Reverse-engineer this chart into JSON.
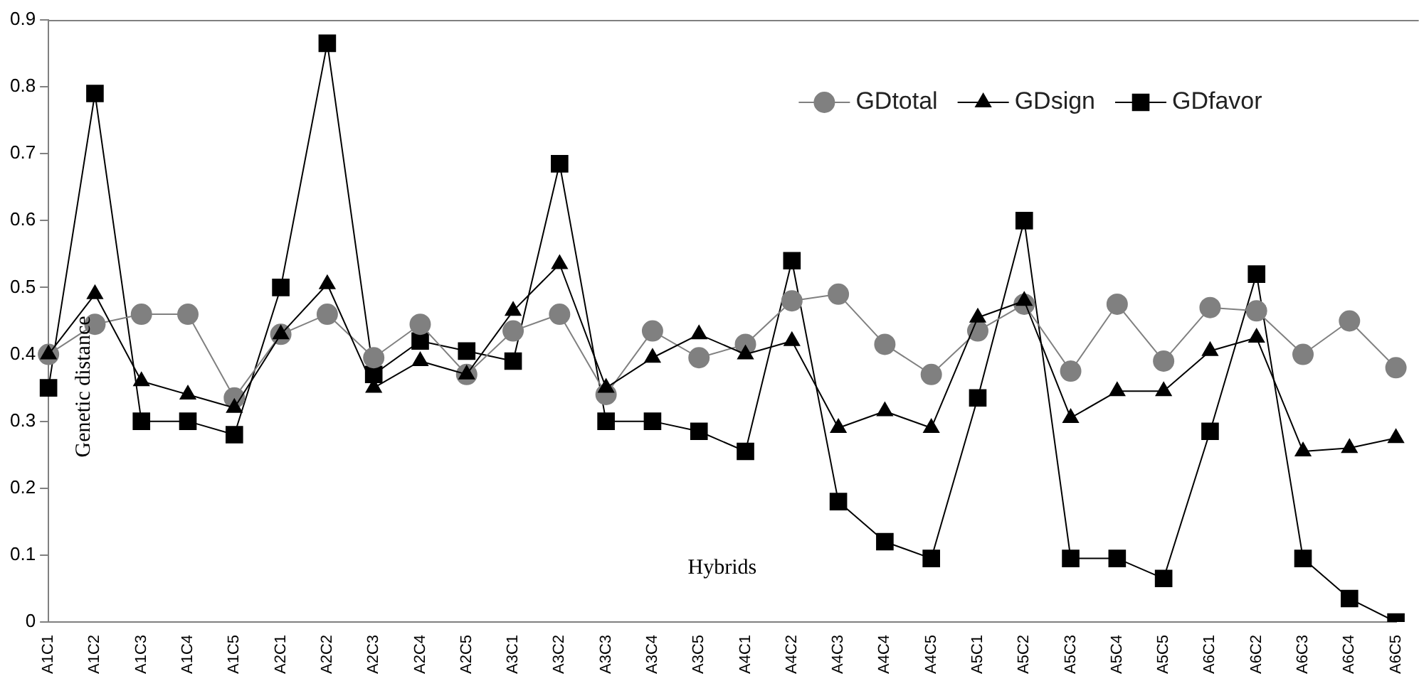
{
  "chart_data": {
    "type": "line",
    "xlabel": "Hybrids",
    "ylabel": "Genetic distance",
    "categories": [
      "A1C1",
      "A1C2",
      "A1C3",
      "A1C4",
      "A1C5",
      "A2C1",
      "A2C2",
      "A2C3",
      "A2C4",
      "A2C5",
      "A3C1",
      "A3C2",
      "A3C3",
      "A3C4",
      "A3C5",
      "A4C1",
      "A4C2",
      "A4C3",
      "A4C4",
      "A4C5",
      "A5C1",
      "A5C2",
      "A5C3",
      "A5C4",
      "A5C5",
      "A6C1",
      "A6C2",
      "A6C3",
      "A6C4",
      "A6C5"
    ],
    "series": [
      {
        "name": "GDtotal",
        "color": "#808080",
        "marker": "circle",
        "values": [
          0.4,
          0.445,
          0.46,
          0.46,
          0.335,
          0.43,
          0.46,
          0.395,
          0.445,
          0.37,
          0.435,
          0.46,
          0.34,
          0.435,
          0.395,
          0.415,
          0.48,
          0.49,
          0.415,
          0.37,
          0.435,
          0.475,
          0.375,
          0.475,
          0.39,
          0.47,
          0.465,
          0.4,
          0.45,
          0.38
        ]
      },
      {
        "name": "GDsign",
        "color": "#000000",
        "marker": "triangle",
        "values": [
          0.4,
          0.49,
          0.36,
          0.34,
          0.32,
          0.43,
          0.505,
          0.35,
          0.39,
          0.37,
          0.465,
          0.535,
          0.35,
          0.395,
          0.43,
          0.4,
          0.42,
          0.29,
          0.315,
          0.29,
          0.455,
          0.48,
          0.305,
          0.345,
          0.345,
          0.405,
          0.425,
          0.255,
          0.26,
          0.275
        ]
      },
      {
        "name": "GDfavor",
        "color": "#000000",
        "marker": "square",
        "values": [
          0.35,
          0.79,
          0.3,
          0.3,
          0.28,
          0.5,
          0.865,
          0.37,
          0.42,
          0.405,
          0.39,
          0.685,
          0.3,
          0.3,
          0.285,
          0.255,
          0.54,
          0.18,
          0.12,
          0.095,
          0.335,
          0.6,
          0.095,
          0.095,
          0.065,
          0.285,
          0.52,
          0.095,
          0.035,
          0.0
        ]
      }
    ],
    "ylim": [
      0,
      0.9
    ],
    "yticks": [
      0,
      0.1,
      0.2,
      0.3,
      0.4,
      0.5,
      0.6,
      0.7,
      0.8,
      0.9
    ],
    "grid": false,
    "legend": "top right"
  }
}
